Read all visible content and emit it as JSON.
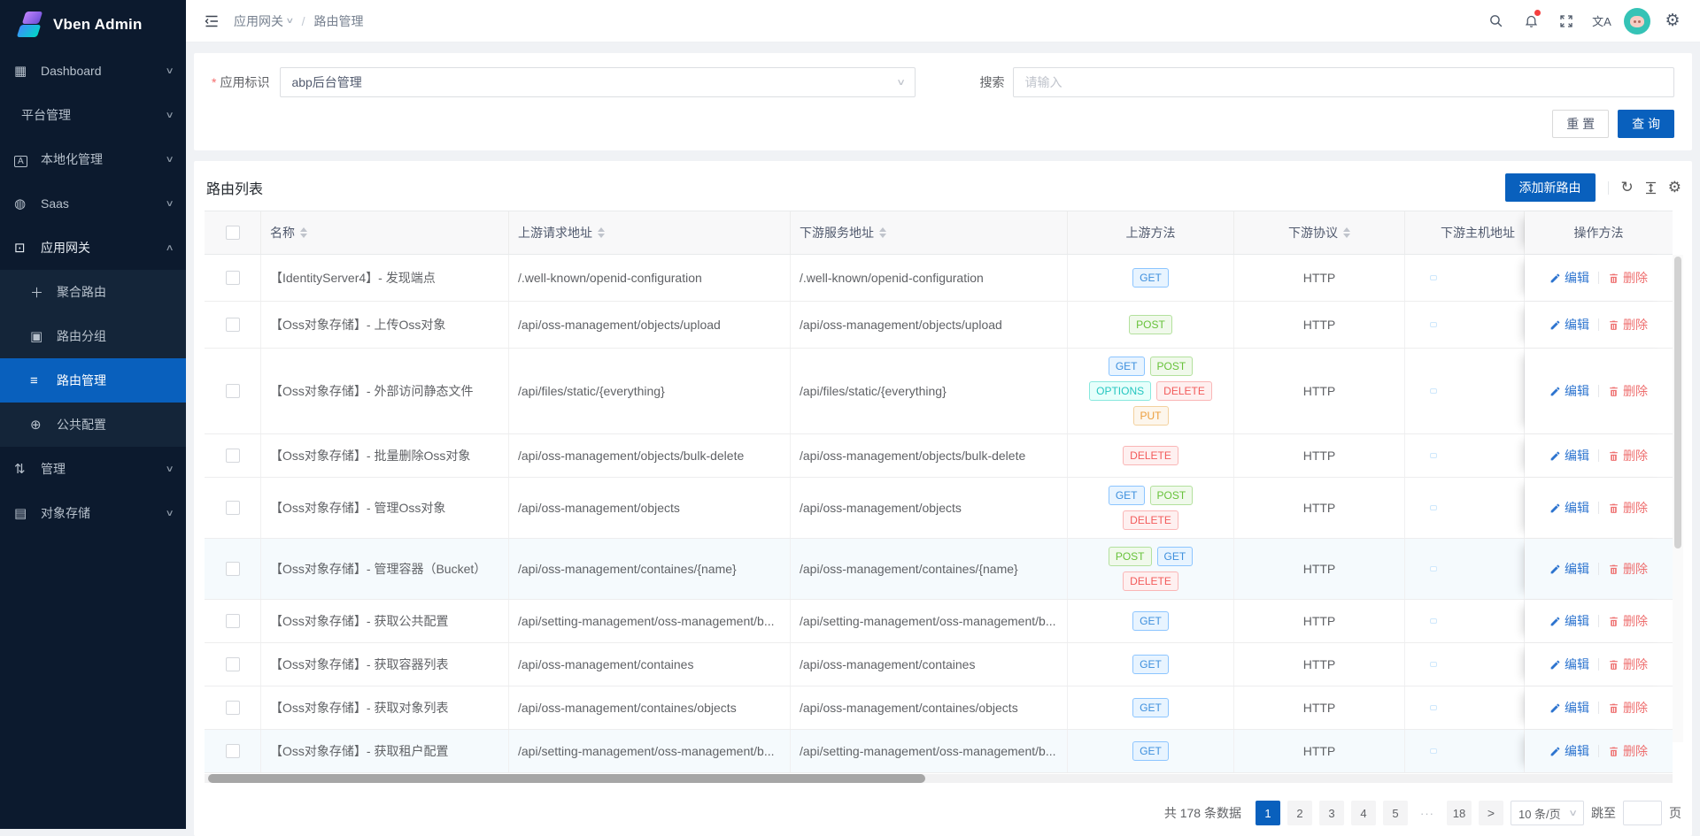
{
  "app": {
    "logo_title": "Vben Admin"
  },
  "header": {
    "breadcrumb": [
      {
        "label": "应用网关",
        "has_dropdown": true
      },
      {
        "label": "路由管理",
        "has_dropdown": false
      }
    ],
    "translate_label": "文A",
    "notification_has_badge": true
  },
  "sidebar": {
    "items": [
      {
        "label": "Dashboard",
        "icon": "dashboard-icon",
        "glyph": "▦",
        "chevron": "down"
      },
      {
        "label": "平台管理",
        "icon": null,
        "chevron": "down"
      },
      {
        "label": "本地化管理",
        "icon": "localization-icon",
        "glyph": "A",
        "boxed": true,
        "chevron": "down"
      },
      {
        "label": "Saas",
        "icon": "saas-icon",
        "glyph": "◍",
        "chevron": "down"
      },
      {
        "label": "应用网关",
        "icon": "gateway-icon",
        "glyph": "⊡",
        "chevron": "up",
        "expanded": true,
        "children": [
          {
            "label": "聚合路由",
            "icon": "aggregate-route-icon",
            "glyph": "＋"
          },
          {
            "label": "路由分组",
            "icon": "route-group-icon",
            "glyph": "▣"
          },
          {
            "label": "路由管理",
            "icon": "route-management-icon",
            "glyph": "≡",
            "active": true
          },
          {
            "label": "公共配置",
            "icon": "common-config-icon",
            "glyph": "⊕"
          }
        ]
      },
      {
        "label": "管理",
        "icon": "management-icon",
        "glyph": "⇅",
        "chevron": "down"
      },
      {
        "label": "对象存储",
        "icon": "object-storage-icon",
        "glyph": "▤",
        "chevron": "down"
      }
    ]
  },
  "query": {
    "required_mark": "*",
    "app_label": "应用标识",
    "app_value": "abp后台管理",
    "search_label": "搜索",
    "search_placeholder": "请输入",
    "reset_label": "重 置",
    "submit_label": "查 询"
  },
  "table": {
    "title": "路由列表",
    "add_label": "添加新路由",
    "edit_label": "编辑",
    "delete_label": "删除",
    "columns": [
      {
        "label": "名称",
        "sortable": true
      },
      {
        "label": "上游请求地址",
        "sortable": true
      },
      {
        "label": "下游服务地址",
        "sortable": true
      },
      {
        "label": "上游方法",
        "sortable": false
      },
      {
        "label": "下游协议",
        "sortable": true
      },
      {
        "label": "下游主机地址",
        "sortable": false
      },
      {
        "label": "操作方法",
        "sortable": false
      }
    ],
    "rows": [
      {
        "name": "【IdentityServer4】- 发现端点",
        "upstream": "/.well-known/openid-configuration",
        "downstream": "/.well-known/openid-configuration",
        "methods": [
          "GET"
        ],
        "protocol": "HTTP",
        "host_redacted": true,
        "highlighted": false
      },
      {
        "name": "【Oss对象存储】- 上传Oss对象",
        "upstream": "/api/oss-management/objects/upload",
        "downstream": "/api/oss-management/objects/upload",
        "methods": [
          "POST"
        ],
        "protocol": "HTTP",
        "host_redacted": true,
        "highlighted": false
      },
      {
        "name": "【Oss对象存储】- 外部访问静态文件",
        "upstream": "/api/files/static/{everything}",
        "downstream": "/api/files/static/{everything}",
        "methods": [
          "GET",
          "POST",
          "OPTIONS",
          "DELETE",
          "PUT"
        ],
        "protocol": "HTTP",
        "host_redacted": true,
        "highlighted": false
      },
      {
        "name": "【Oss对象存储】- 批量删除Oss对象",
        "upstream": "/api/oss-management/objects/bulk-delete",
        "downstream": "/api/oss-management/objects/bulk-delete",
        "methods": [
          "DELETE"
        ],
        "protocol": "HTTP",
        "host_redacted": true,
        "highlighted": false
      },
      {
        "name": "【Oss对象存储】- 管理Oss对象",
        "upstream": "/api/oss-management/objects",
        "downstream": "/api/oss-management/objects",
        "methods": [
          "GET",
          "POST",
          "DELETE"
        ],
        "protocol": "HTTP",
        "host_redacted": true,
        "highlighted": false
      },
      {
        "name": "【Oss对象存储】- 管理容器（Bucket）",
        "upstream": "/api/oss-management/containes/{name}",
        "downstream": "/api/oss-management/containes/{name}",
        "methods": [
          "POST",
          "GET",
          "DELETE"
        ],
        "protocol": "HTTP",
        "host_redacted": true,
        "highlighted": true
      },
      {
        "name": "【Oss对象存储】- 获取公共配置",
        "upstream": "/api/setting-management/oss-management/b...",
        "downstream": "/api/setting-management/oss-management/b...",
        "methods": [
          "GET"
        ],
        "protocol": "HTTP",
        "host_redacted": true,
        "highlighted": false
      },
      {
        "name": "【Oss对象存储】- 获取容器列表",
        "upstream": "/api/oss-management/containes",
        "downstream": "/api/oss-management/containes",
        "methods": [
          "GET"
        ],
        "protocol": "HTTP",
        "host_redacted": true,
        "highlighted": false
      },
      {
        "name": "【Oss对象存储】- 获取对象列表",
        "upstream": "/api/oss-management/containes/objects",
        "downstream": "/api/oss-management/containes/objects",
        "methods": [
          "GET"
        ],
        "protocol": "HTTP",
        "host_redacted": true,
        "highlighted": false
      },
      {
        "name": "【Oss对象存储】- 获取租户配置",
        "upstream": "/api/setting-management/oss-management/b...",
        "downstream": "/api/setting-management/oss-management/b...",
        "methods": [
          "GET"
        ],
        "protocol": "HTTP",
        "host_redacted": true,
        "highlighted": true
      }
    ]
  },
  "pagination": {
    "total_text": "共 178 条数据",
    "pages": [
      "1",
      "2",
      "3",
      "4",
      "5",
      "···",
      "18"
    ],
    "active_page": "1",
    "next_label": ">",
    "page_size_value": "10 条/页",
    "jump_label": "跳至",
    "jump_suffix": "页",
    "jump_value": ""
  },
  "colors": {
    "primary": "#0960bd",
    "sidebar_bg": "#0c1a2e",
    "submenu_bg": "#142539",
    "badge_red": "#f53f3f",
    "edit_link": "#2d74cf",
    "delete_link": "#ee6f6f",
    "method_tags": {
      "GET": {
        "bg": "#e8f4ff",
        "border": "#8cc5ff",
        "text": "#3d8fdd"
      },
      "POST": {
        "bg": "#f0f9eb",
        "border": "#b3e19d",
        "text": "#67c23a"
      },
      "OPTIONS": {
        "bg": "#e6fffb",
        "border": "#87e8de",
        "text": "#25c6c0"
      },
      "DELETE": {
        "bg": "#fef0f0",
        "border": "#fab6b6",
        "text": "#f35b5b"
      },
      "PUT": {
        "bg": "#fdf6ec",
        "border": "#f3d19e",
        "text": "#eb9e3e"
      }
    }
  }
}
